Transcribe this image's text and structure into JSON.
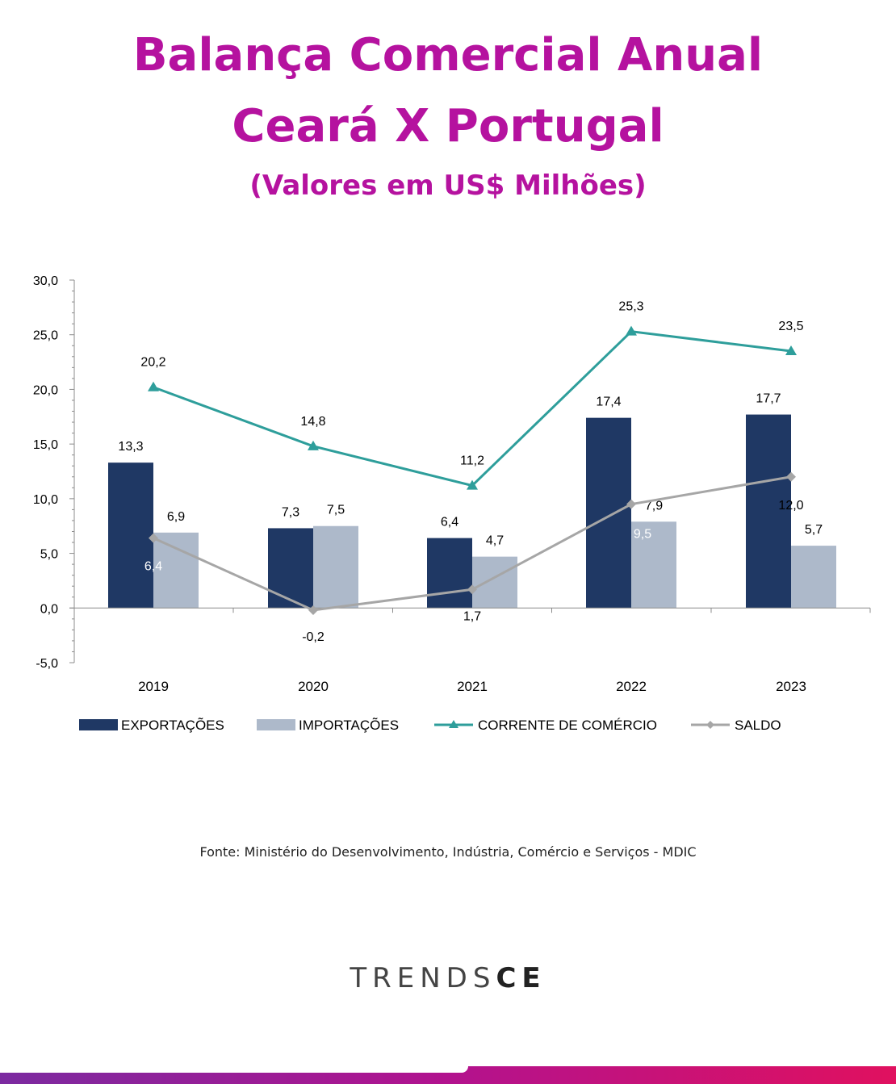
{
  "header": {
    "title_line1": "Balança Comercial Anual",
    "title_line2": "Ceará X Portugal",
    "subtitle": "(Valores em US$ Milhões)"
  },
  "chart_data": {
    "type": "bar",
    "categories": [
      "2019",
      "2020",
      "2021",
      "2022",
      "2023"
    ],
    "series": [
      {
        "name": "EXPORTAÇÕES",
        "kind": "bar",
        "color": "#1f3864",
        "values": [
          13.3,
          7.3,
          6.4,
          17.4,
          17.7
        ],
        "labels": [
          "13,3",
          "7,3",
          "6,4",
          "17,4",
          "17,7"
        ]
      },
      {
        "name": "IMPORTAÇÕES",
        "kind": "bar",
        "color": "#adb9ca",
        "values": [
          6.9,
          7.5,
          4.7,
          7.9,
          5.7
        ],
        "labels": [
          "6,9",
          "7,5",
          "4,7",
          "7,9",
          "5,7"
        ]
      },
      {
        "name": "CORRENTE DE COMÉRCIO",
        "kind": "line",
        "marker": "triangle",
        "color": "#2e9e9b",
        "values": [
          20.2,
          14.8,
          11.2,
          25.3,
          23.5
        ],
        "labels": [
          "20,2",
          "14,8",
          "11,2",
          "25,3",
          "23,5"
        ]
      },
      {
        "name": "SALDO",
        "kind": "line",
        "marker": "diamond",
        "color": "#a6a6a6",
        "values": [
          6.4,
          -0.2,
          1.7,
          9.5,
          12.0
        ],
        "labels": [
          "6,4",
          "-0,2",
          "1,7",
          "9,5",
          "12,0"
        ]
      }
    ],
    "yticks": [
      "30,0",
      "25,0",
      "20,0",
      "15,0",
      "10,0",
      "5,0",
      "0,0",
      "-5,0"
    ],
    "ylim": [
      -5,
      30
    ],
    "grid": false,
    "legend_position": "bottom"
  },
  "footer": {
    "source": "Fonte: Ministério do Desenvolvimento, Indústria, Comércio e Serviços - MDIC",
    "logo_light": "TRENDS",
    "logo_bold": "CE"
  }
}
